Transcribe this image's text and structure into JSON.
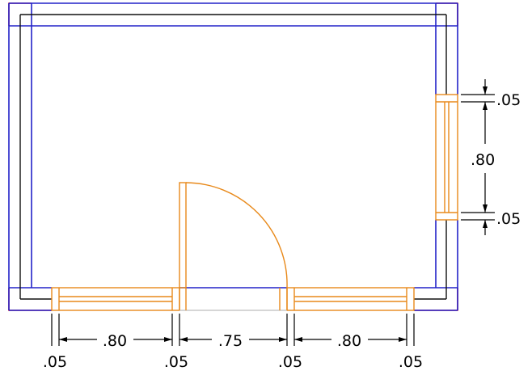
{
  "colors": {
    "background": "#ffffff",
    "outer_wall": "#e8202a",
    "wall_outline": "#2222c8",
    "wall_inner": "#111111",
    "openings": "#e8891a",
    "dimension": "#000000"
  },
  "dimensions": {
    "bottom_labels": [
      ".05",
      ".80",
      ".05",
      ".75",
      ".05",
      ".80",
      ".05"
    ],
    "right_labels": [
      ".05",
      ".80",
      ".05"
    ]
  }
}
